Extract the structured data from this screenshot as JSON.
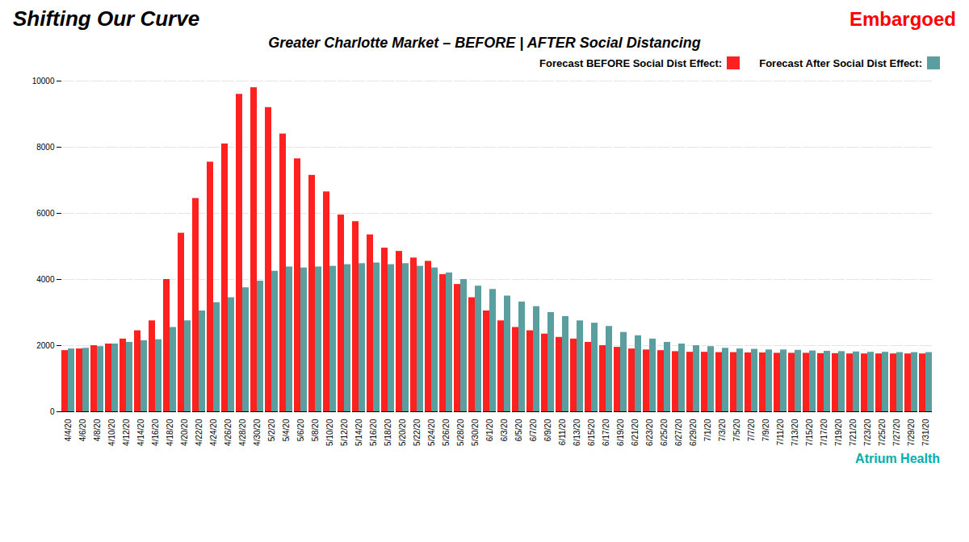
{
  "chart_data": {
    "type": "bar",
    "title": "Shifting Our Curve",
    "subtitle": "Greater Charlotte Market – BEFORE | AFTER Social Distancing",
    "annotations": [
      {
        "text": "Embargoed",
        "color": "#FF0000"
      },
      {
        "text": "Atrium Health",
        "color": "#00AEAE"
      }
    ],
    "categories": [
      "4/4/20",
      "4/6/20",
      "4/8/20",
      "4/10/20",
      "4/12/20",
      "4/14/20",
      "4/16/20",
      "4/18/20",
      "4/20/20",
      "4/22/20",
      "4/24/20",
      "4/26/20",
      "4/28/20",
      "4/30/20",
      "5/2/20",
      "5/4/20",
      "5/6/20",
      "5/8/20",
      "5/10/20",
      "5/12/20",
      "5/14/20",
      "5/16/20",
      "5/18/20",
      "5/20/20",
      "5/22/20",
      "5/24/20",
      "5/26/20",
      "5/28/20",
      "5/30/20",
      "6/1/20",
      "6/3/20",
      "6/5/20",
      "6/7/20",
      "6/9/20",
      "6/11/20",
      "6/13/20",
      "6/15/20",
      "6/17/20",
      "6/19/20",
      "6/21/20",
      "6/23/20",
      "6/25/20",
      "6/27/20",
      "6/29/20",
      "7/1/20",
      "7/3/20",
      "7/5/20",
      "7/7/20",
      "7/9/20",
      "7/11/20",
      "7/13/20",
      "7/15/20",
      "7/17/20",
      "7/19/20",
      "7/21/20",
      "7/23/20",
      "7/25/20",
      "7/27/20",
      "7/29/20",
      "7/31/20"
    ],
    "series": [
      {
        "name": "Forecast BEFORE Social Dist Effect:",
        "color": "#FF2020",
        "values": [
          1850,
          1900,
          2000,
          2050,
          2200,
          2450,
          2750,
          4000,
          5400,
          6450,
          7550,
          8100,
          9600,
          9800,
          9200,
          8400,
          7650,
          7150,
          6650,
          5950,
          5750,
          5350,
          4950,
          4850,
          4650,
          4550,
          4150,
          3850,
          3450,
          3050,
          2750,
          2550,
          2450,
          2350,
          2250,
          2200,
          2100,
          2000,
          1950,
          1900,
          1870,
          1850,
          1820,
          1800,
          1800,
          1790,
          1790,
          1780,
          1780,
          1770,
          1770,
          1770,
          1760,
          1760,
          1750,
          1750,
          1750,
          1750,
          1750,
          1750
        ]
      },
      {
        "name": "Forecast After Social Dist Effect:",
        "color": "#5B9EA0",
        "values": [
          1900,
          1920,
          1970,
          2050,
          2100,
          2150,
          2180,
          2550,
          2750,
          3050,
          3300,
          3450,
          3750,
          3950,
          4250,
          4380,
          4350,
          4380,
          4400,
          4450,
          4480,
          4500,
          4450,
          4480,
          4400,
          4350,
          4200,
          4000,
          3800,
          3700,
          3500,
          3320,
          3180,
          3000,
          2880,
          2750,
          2680,
          2580,
          2400,
          2300,
          2200,
          2100,
          2050,
          2000,
          1970,
          1920,
          1900,
          1890,
          1870,
          1870,
          1860,
          1840,
          1830,
          1820,
          1810,
          1800,
          1800,
          1790,
          1790,
          1790
        ]
      }
    ],
    "ylim": [
      0,
      10000
    ],
    "yticks": [
      0,
      2000,
      4000,
      6000,
      8000,
      10000
    ],
    "grid": true,
    "legend": "upper right"
  }
}
